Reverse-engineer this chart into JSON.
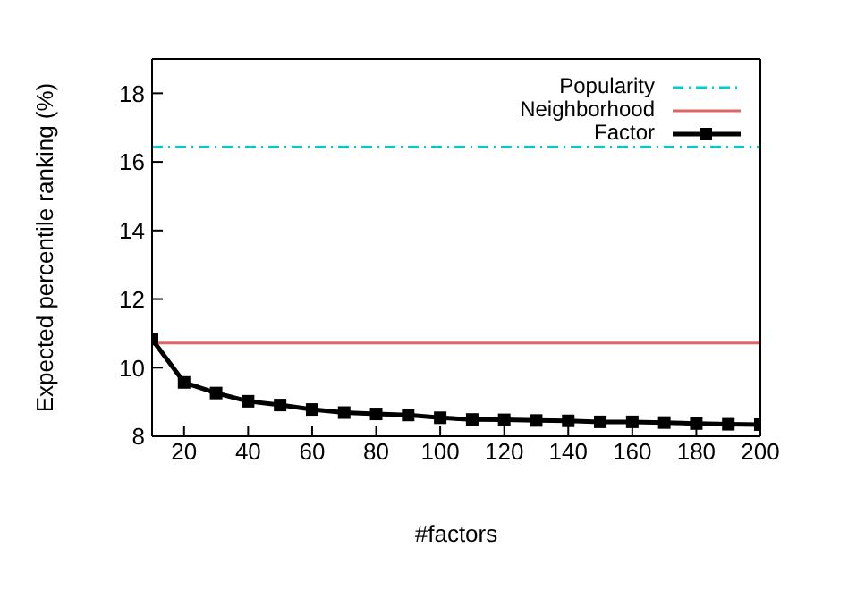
{
  "chart_data": {
    "type": "line",
    "xlabel": "#factors",
    "ylabel": "Expected percentile ranking (%)",
    "x": [
      10,
      20,
      30,
      40,
      50,
      60,
      70,
      80,
      90,
      100,
      110,
      120,
      130,
      140,
      150,
      160,
      170,
      180,
      190,
      200
    ],
    "series": [
      {
        "name": "Popularity",
        "color": "#00cccc",
        "line_style": "dashdot",
        "marker": "none",
        "values": [
          16.43,
          16.43,
          16.43,
          16.43,
          16.43,
          16.43,
          16.43,
          16.43,
          16.43,
          16.43,
          16.43,
          16.43,
          16.43,
          16.43,
          16.43,
          16.43,
          16.43,
          16.43,
          16.43,
          16.43
        ]
      },
      {
        "name": "Neighborhood",
        "color": "#e06666",
        "line_style": "solid",
        "marker": "none",
        "values": [
          10.72,
          10.72,
          10.72,
          10.72,
          10.72,
          10.72,
          10.72,
          10.72,
          10.72,
          10.72,
          10.72,
          10.72,
          10.72,
          10.72,
          10.72,
          10.72,
          10.72,
          10.72,
          10.72,
          10.72
        ]
      },
      {
        "name": "Factor",
        "color": "#000000",
        "line_style": "solid",
        "marker": "square",
        "values": [
          10.83,
          9.57,
          9.26,
          9.02,
          8.91,
          8.78,
          8.69,
          8.65,
          8.62,
          8.54,
          8.49,
          8.48,
          8.46,
          8.45,
          8.42,
          8.42,
          8.4,
          8.37,
          8.35,
          8.34
        ]
      }
    ],
    "xlim": [
      10,
      200
    ],
    "xticks": [
      20,
      40,
      60,
      80,
      100,
      120,
      140,
      160,
      180,
      200
    ],
    "ylim": [
      8,
      19
    ],
    "yticks": [
      8,
      10,
      12,
      14,
      16,
      18
    ],
    "legend": "top right"
  }
}
